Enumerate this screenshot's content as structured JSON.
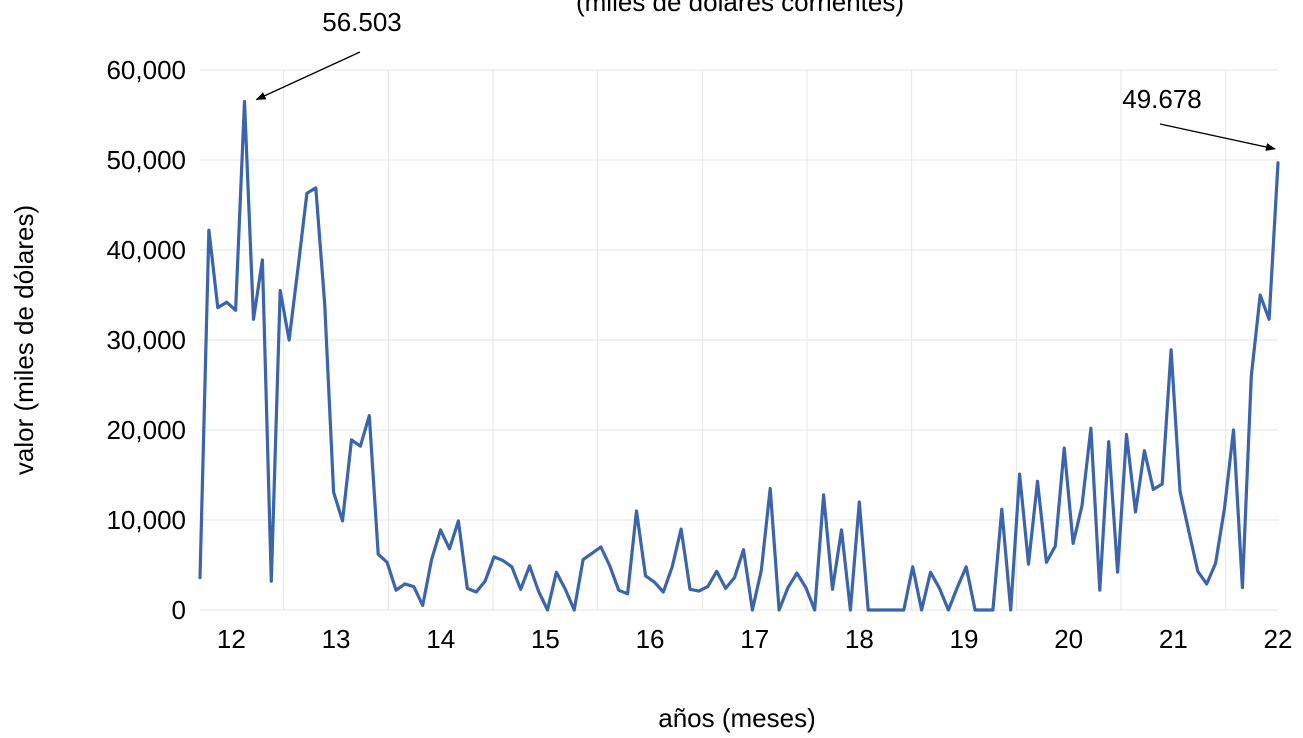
{
  "chart_data": {
    "type": "line",
    "title": "(miles de dólares corrientes)",
    "xlabel": "años (meses)",
    "ylabel": "valor (miles de dólares)",
    "ylim": [
      0,
      60000
    ],
    "yticks": [
      0,
      10000,
      20000,
      30000,
      40000,
      50000,
      60000
    ],
    "ytick_labels": [
      "0",
      "10,000",
      "20,000",
      "30,000",
      "40,000",
      "50,000",
      "60,000"
    ],
    "xticks": [
      "12",
      "13",
      "14",
      "15",
      "16",
      "17",
      "18",
      "19",
      "20",
      "21",
      "22"
    ],
    "grid": true,
    "legend": "none",
    "color": "#3b64ad",
    "series": [
      {
        "values": [
          3600,
          42200,
          33600,
          34200,
          33300,
          56503,
          32300,
          38900,
          3200,
          35500,
          30000,
          38000,
          46300,
          46900,
          34000,
          13100,
          9900,
          18900,
          18200,
          21600,
          6200,
          5300,
          2200,
          2900,
          2600,
          500,
          5600,
          8900,
          6800,
          9900,
          2400,
          2000,
          3200,
          5900,
          5500,
          4800,
          2300,
          4900,
          2100,
          0,
          4200,
          2300,
          0,
          5600,
          6300,
          7000,
          4900,
          2200,
          1800,
          11000,
          3800,
          3100,
          2000,
          4800,
          9000,
          2300,
          2100,
          2600,
          4300,
          2400,
          3600,
          6700,
          0,
          4400,
          13500,
          0,
          2500,
          4100,
          2500,
          0,
          12800,
          2300,
          8900,
          0,
          12000,
          0,
          0,
          0,
          0,
          0,
          4800,
          0,
          4200,
          2400,
          0,
          2500,
          4800,
          0,
          0,
          0,
          11200,
          0,
          15100,
          5100,
          14300,
          5300,
          7100,
          18000,
          7400,
          11600,
          20200,
          2200,
          18700,
          4200,
          19500,
          10900,
          17700,
          13400,
          14000,
          28900,
          13200,
          8700,
          4300,
          2900,
          5200,
          11300,
          20000,
          2500,
          26000,
          35000,
          32300,
          49678
        ]
      }
    ],
    "annotations": [
      {
        "text": "56.503",
        "value": 56503
      },
      {
        "text": "49.678",
        "value": 49678
      }
    ]
  }
}
